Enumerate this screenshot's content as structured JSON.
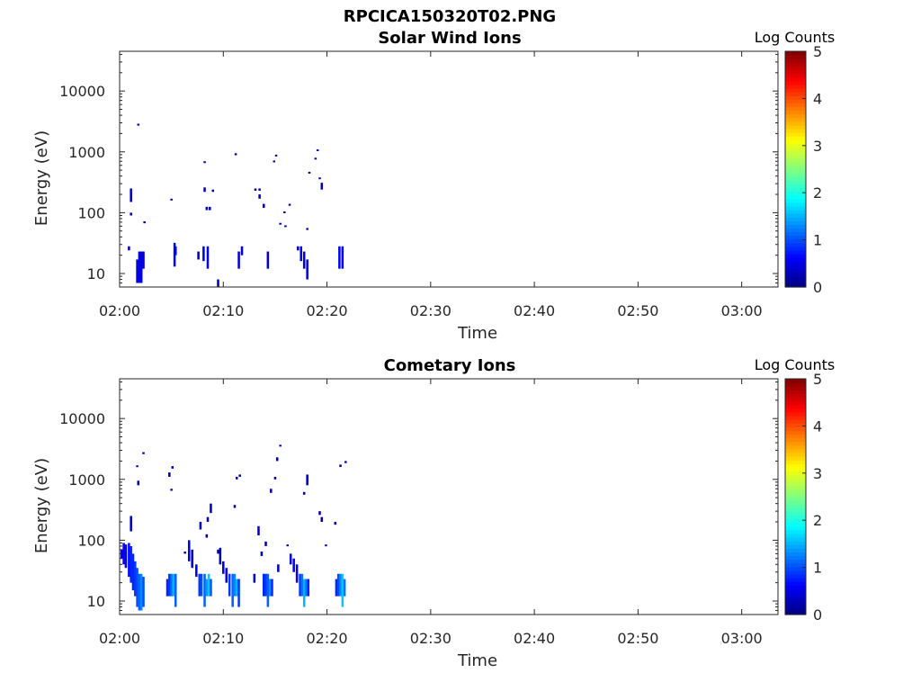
{
  "figure": {
    "title": "RPCICA150320T02.PNG"
  },
  "chart_data": [
    {
      "type": "heatmap",
      "title": "Solar Wind Ions",
      "xlabel": "Time",
      "ylabel": "Energy (eV)",
      "x_ticks": [
        "02:00",
        "02:10",
        "02:20",
        "02:30",
        "02:40",
        "02:50",
        "03:00"
      ],
      "x_tick_minutes": [
        0,
        10,
        20,
        30,
        40,
        50,
        60
      ],
      "xlim_minutes": [
        0,
        63.5
      ],
      "y_scale": "log",
      "ylim": [
        6,
        45000
      ],
      "y_ticks": [
        10,
        100,
        1000,
        10000
      ],
      "y_tick_labels": [
        "10",
        "100",
        "1000",
        "10000"
      ],
      "colorbar": {
        "label": "Log Counts",
        "range": [
          0,
          5
        ],
        "ticks": [
          "0",
          "1",
          "2",
          "3",
          "4",
          "5"
        ],
        "colormap": "jet"
      },
      "cells": [
        [
          0.9,
          24,
          28,
          0.3
        ],
        [
          1.1,
          90,
          100,
          0.2
        ],
        [
          1.1,
          150,
          250,
          0.3
        ],
        [
          1.7,
          7,
          17,
          0.4
        ],
        [
          1.8,
          2700,
          2900,
          0.3
        ],
        [
          1.9,
          7,
          23,
          0.5
        ],
        [
          2.1,
          7,
          23,
          0.5
        ],
        [
          2.3,
          12,
          23,
          0.4
        ],
        [
          2.4,
          67,
          72,
          0.2
        ],
        [
          5.0,
          160,
          170,
          0.2
        ],
        [
          5.3,
          13,
          32,
          0.6
        ],
        [
          5.4,
          20,
          28,
          0.5
        ],
        [
          7.6,
          17,
          23,
          0.3
        ],
        [
          8.1,
          16,
          28,
          0.4
        ],
        [
          8.2,
          660,
          700,
          0.2
        ],
        [
          8.2,
          220,
          260,
          0.2
        ],
        [
          8.4,
          110,
          125,
          0.3
        ],
        [
          8.5,
          12,
          28,
          0.5
        ],
        [
          8.7,
          110,
          125,
          0.2
        ],
        [
          9.0,
          220,
          240,
          0.2
        ],
        [
          9.5,
          6,
          8,
          0.2
        ],
        [
          11.2,
          880,
          950,
          0.2
        ],
        [
          11.5,
          12,
          23,
          0.5
        ],
        [
          11.8,
          20,
          28,
          0.3
        ],
        [
          13.1,
          230,
          250,
          0.2
        ],
        [
          13.5,
          230,
          250,
          0.2
        ],
        [
          13.5,
          170,
          200,
          0.2
        ],
        [
          13.9,
          120,
          140,
          0.2
        ],
        [
          14.3,
          12,
          23,
          0.4
        ],
        [
          14.9,
          680,
          720,
          0.2
        ],
        [
          15.1,
          850,
          900,
          0.2
        ],
        [
          15.5,
          65,
          68,
          0.2
        ],
        [
          15.9,
          100,
          105,
          0.2
        ],
        [
          16.0,
          58,
          62,
          0.2
        ],
        [
          16.4,
          130,
          140,
          0.2
        ],
        [
          17.2,
          24,
          28,
          0.3
        ],
        [
          17.5,
          16,
          28,
          0.5
        ],
        [
          17.8,
          12,
          23,
          0.4
        ],
        [
          18.1,
          8,
          17,
          0.5
        ],
        [
          18.1,
          52,
          56,
          0.2
        ],
        [
          18.3,
          450,
          470,
          0.2
        ],
        [
          18.9,
          760,
          800,
          0.2
        ],
        [
          19.1,
          1050,
          1100,
          0.2
        ],
        [
          19.3,
          360,
          380,
          0.2
        ],
        [
          19.5,
          240,
          310,
          0.3
        ],
        [
          21.2,
          12,
          28,
          0.6
        ],
        [
          21.5,
          12,
          28,
          0.5
        ]
      ]
    },
    {
      "type": "heatmap",
      "title": "Cometary Ions",
      "xlabel": "Time",
      "ylabel": "Energy (eV)",
      "x_ticks": [
        "02:00",
        "02:10",
        "02:20",
        "02:30",
        "02:40",
        "02:50",
        "03:00"
      ],
      "x_tick_minutes": [
        0,
        10,
        20,
        30,
        40,
        50,
        60
      ],
      "xlim_minutes": [
        0,
        63.5
      ],
      "y_scale": "log",
      "ylim": [
        6,
        45000
      ],
      "y_ticks": [
        10,
        100,
        1000,
        10000
      ],
      "y_tick_labels": [
        "10",
        "100",
        "1000",
        "10000"
      ],
      "colorbar": {
        "label": "Log Counts",
        "range": [
          0,
          5
        ],
        "ticks": [
          "0",
          "1",
          "2",
          "3",
          "4",
          "5"
        ],
        "colormap": "jet"
      },
      "cells": [
        [
          0.2,
          50,
          70,
          0.4
        ],
        [
          0.4,
          40,
          90,
          0.5
        ],
        [
          0.6,
          35,
          85,
          0.6
        ],
        [
          0.9,
          25,
          90,
          0.7
        ],
        [
          1.1,
          20,
          80,
          0.8
        ],
        [
          1.3,
          15,
          60,
          0.8
        ],
        [
          1.5,
          12,
          45,
          0.9
        ],
        [
          1.7,
          8,
          35,
          1.0
        ],
        [
          1.9,
          7,
          28,
          1.1
        ],
        [
          2.1,
          7,
          28,
          1.3
        ],
        [
          2.3,
          8,
          25,
          1.0
        ],
        [
          1.1,
          140,
          250,
          0.3
        ],
        [
          1.7,
          1600,
          1700,
          0.2
        ],
        [
          1.8,
          800,
          950,
          0.2
        ],
        [
          2.3,
          2600,
          2800,
          0.2
        ],
        [
          4.6,
          12,
          23,
          0.8
        ],
        [
          4.8,
          12,
          28,
          0.9
        ],
        [
          5.0,
          12,
          28,
          1.2
        ],
        [
          5.2,
          12,
          28,
          1.5
        ],
        [
          5.4,
          8,
          28,
          1.1
        ],
        [
          4.8,
          1100,
          1300,
          0.2
        ],
        [
          5.0,
          650,
          700,
          0.2
        ],
        [
          5.1,
          1500,
          1650,
          0.2
        ],
        [
          6.3,
          60,
          65,
          0.2
        ],
        [
          6.7,
          45,
          100,
          0.4
        ],
        [
          7.0,
          35,
          70,
          0.4
        ],
        [
          7.4,
          25,
          40,
          0.5
        ],
        [
          7.7,
          12,
          28,
          0.9
        ],
        [
          7.9,
          12,
          28,
          1.0
        ],
        [
          8.2,
          8,
          28,
          1.1
        ],
        [
          8.4,
          12,
          23,
          1.4
        ],
        [
          8.6,
          12,
          28,
          1.6
        ],
        [
          8.8,
          12,
          23,
          1.0
        ],
        [
          7.8,
          150,
          200,
          0.3
        ],
        [
          8.5,
          200,
          240,
          0.3
        ],
        [
          8.8,
          280,
          400,
          0.3
        ],
        [
          8.4,
          110,
          125,
          0.2
        ],
        [
          9.5,
          60,
          70,
          0.2
        ],
        [
          9.7,
          40,
          75,
          0.3
        ],
        [
          10.0,
          28,
          45,
          0.4
        ],
        [
          10.3,
          20,
          35,
          0.6
        ],
        [
          10.6,
          12,
          28,
          0.9
        ],
        [
          10.9,
          8,
          28,
          1.1
        ],
        [
          11.1,
          12,
          28,
          1.3
        ],
        [
          11.3,
          12,
          23,
          1.5
        ],
        [
          11.5,
          8,
          23,
          0.9
        ],
        [
          11.1,
          340,
          380,
          0.2
        ],
        [
          11.3,
          1000,
          1100,
          0.2
        ],
        [
          11.6,
          1100,
          1200,
          0.2
        ],
        [
          13.0,
          20,
          28,
          0.4
        ],
        [
          13.4,
          120,
          170,
          0.3
        ],
        [
          13.7,
          55,
          65,
          0.2
        ],
        [
          13.9,
          12,
          28,
          0.8
        ],
        [
          14.1,
          12,
          28,
          0.9
        ],
        [
          14.3,
          8,
          28,
          1.1
        ],
        [
          14.5,
          12,
          23,
          1.3
        ],
        [
          14.7,
          12,
          23,
          0.8
        ],
        [
          14.1,
          80,
          95,
          0.2
        ],
        [
          14.6,
          600,
          700,
          0.2
        ],
        [
          15.0,
          1000,
          1100,
          0.2
        ],
        [
          15.2,
          2000,
          2300,
          0.2
        ],
        [
          15.5,
          3500,
          3700,
          0.2
        ],
        [
          15.3,
          30,
          40,
          0.3
        ],
        [
          16.2,
          80,
          85,
          0.2
        ],
        [
          16.5,
          40,
          60,
          0.4
        ],
        [
          16.8,
          30,
          50,
          0.5
        ],
        [
          17.1,
          20,
          40,
          0.6
        ],
        [
          17.4,
          12,
          28,
          0.9
        ],
        [
          17.6,
          12,
          28,
          1.2
        ],
        [
          17.8,
          8,
          23,
          1.5
        ],
        [
          18.0,
          12,
          23,
          1.2
        ],
        [
          18.2,
          12,
          23,
          0.8
        ],
        [
          17.8,
          560,
          620,
          0.2
        ],
        [
          18.1,
          800,
          1200,
          0.3
        ],
        [
          19.3,
          260,
          300,
          0.2
        ],
        [
          19.5,
          200,
          240,
          0.2
        ],
        [
          19.9,
          80,
          85,
          0.2
        ],
        [
          20.9,
          12,
          23,
          0.8
        ],
        [
          21.1,
          12,
          28,
          1.0
        ],
        [
          21.3,
          12,
          28,
          1.3
        ],
        [
          21.5,
          8,
          28,
          1.6
        ],
        [
          21.7,
          12,
          23,
          1.2
        ],
        [
          20.8,
          180,
          200,
          0.2
        ],
        [
          21.3,
          1600,
          1750,
          0.2
        ],
        [
          21.8,
          1850,
          2000,
          0.2
        ]
      ]
    }
  ]
}
